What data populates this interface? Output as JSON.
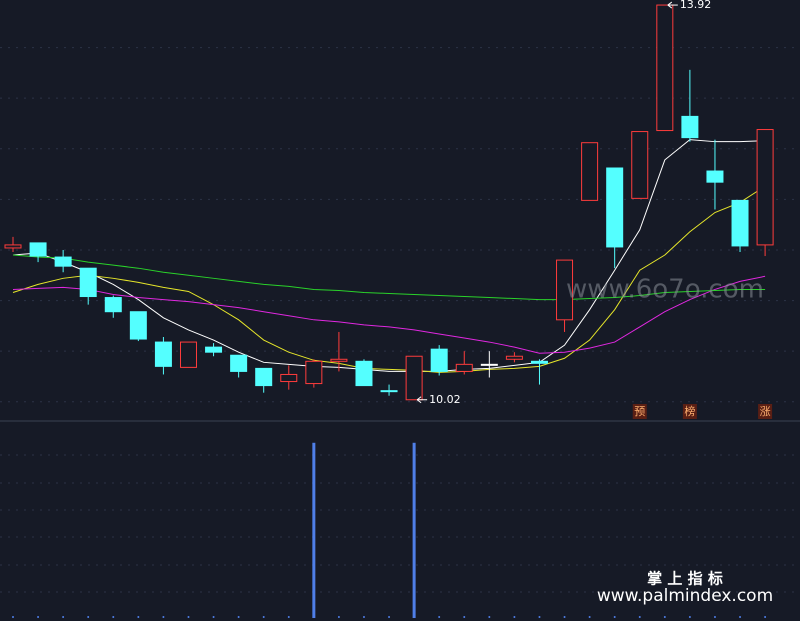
{
  "chart_data": {
    "type": "candlestick",
    "ylim": [
      9.82,
      13.97
    ],
    "yticks": [
      10.0,
      10.5,
      11.0,
      11.5,
      12.0,
      12.5,
      13.0,
      13.5
    ],
    "grid": true,
    "up_color": "#ff3c3c",
    "down_color": "#54ffff",
    "flat_color": "#ffffff",
    "open": [
      11.52,
      11.57,
      11.43,
      11.32,
      11.03,
      10.89,
      10.59,
      10.34,
      10.54,
      10.46,
      10.33,
      10.2,
      10.18,
      10.4,
      10.4,
      10.11,
      10.02,
      10.52,
      10.3,
      10.37,
      10.42,
      10.4,
      10.81,
      11.99,
      12.31,
      12.01,
      12.68,
      12.82,
      12.28,
      11.99,
      11.55
    ],
    "high": [
      11.63,
      11.57,
      11.5,
      11.32,
      11.05,
      10.89,
      10.64,
      10.59,
      10.58,
      10.46,
      10.33,
      10.36,
      10.42,
      10.69,
      10.42,
      10.17,
      10.45,
      10.56,
      10.5,
      10.5,
      10.49,
      10.42,
      11.4,
      12.56,
      12.31,
      12.67,
      13.92,
      13.28,
      12.59,
      11.99,
      12.69
    ],
    "low": [
      11.48,
      11.38,
      11.28,
      10.96,
      10.83,
      10.6,
      10.27,
      10.34,
      10.45,
      10.24,
      10.09,
      10.12,
      10.14,
      10.3,
      10.16,
      10.06,
      10.02,
      10.26,
      10.27,
      10.24,
      10.39,
      10.17,
      10.69,
      11.99,
      11.32,
      12.01,
      12.68,
      12.57,
      11.9,
      11.48,
      11.44
    ],
    "close": [
      11.55,
      11.44,
      11.34,
      11.04,
      10.89,
      10.62,
      10.35,
      10.59,
      10.49,
      10.3,
      10.16,
      10.27,
      10.4,
      10.42,
      10.16,
      10.1,
      10.45,
      10.3,
      10.37,
      10.37,
      10.45,
      10.38,
      11.4,
      12.56,
      11.53,
      12.67,
      13.92,
      12.61,
      12.17,
      11.54,
      12.69
    ],
    "lines": [
      {
        "color": "#ffffff",
        "values": [
          11.45,
          11.47,
          11.38,
          11.28,
          11.16,
          11.01,
          10.83,
          10.71,
          10.61,
          10.49,
          10.39,
          10.37,
          10.35,
          10.34,
          10.32,
          10.3,
          10.3,
          10.3,
          10.32,
          10.33,
          10.36,
          10.39,
          10.56,
          10.91,
          11.3,
          11.7,
          12.39,
          12.59,
          12.57,
          12.57,
          12.58
        ]
      },
      {
        "color": "#e6e62a",
        "values": [
          11.08,
          11.16,
          11.22,
          11.25,
          11.22,
          11.18,
          11.13,
          11.09,
          10.96,
          10.81,
          10.61,
          10.49,
          10.41,
          10.38,
          10.33,
          10.32,
          10.31,
          10.29,
          10.3,
          10.32,
          10.33,
          10.35,
          10.43,
          10.61,
          10.91,
          11.3,
          11.45,
          11.68,
          11.87,
          11.97,
          12.13
        ]
      },
      {
        "color": "#e028e0",
        "values": [
          11.11,
          11.12,
          11.13,
          11.11,
          11.06,
          11.03,
          11.01,
          10.99,
          10.96,
          10.93,
          10.89,
          10.85,
          10.81,
          10.79,
          10.76,
          10.74,
          10.71,
          10.67,
          10.63,
          10.59,
          10.54,
          10.48,
          10.49,
          10.53,
          10.59,
          10.74,
          10.89,
          11.01,
          11.11,
          11.19,
          11.24
        ]
      },
      {
        "color": "#2ad22a",
        "values": [
          11.45,
          11.43,
          11.42,
          11.38,
          11.35,
          11.32,
          11.28,
          11.25,
          11.22,
          11.19,
          11.16,
          11.14,
          11.11,
          11.1,
          11.08,
          11.07,
          11.06,
          11.05,
          11.04,
          11.03,
          11.02,
          11.01,
          11.01,
          11.02,
          11.03,
          11.05,
          11.08,
          11.09,
          11.1,
          11.11,
          11.11
        ]
      }
    ],
    "signal_labels": [
      null,
      null,
      null,
      null,
      null,
      null,
      null,
      null,
      null,
      null,
      null,
      null,
      null,
      null,
      null,
      null,
      null,
      null,
      null,
      null,
      null,
      null,
      null,
      null,
      null,
      "预",
      null,
      "榜",
      null,
      null,
      "涨"
    ],
    "indicator": {
      "color": "#4f7fe8",
      "ylim": [
        0,
        1.13
      ],
      "values": [
        0,
        0,
        0,
        0,
        0,
        0,
        0,
        0,
        0,
        0,
        0,
        0,
        1,
        0,
        0,
        0,
        1,
        0,
        0,
        0,
        0,
        0,
        0,
        0,
        0,
        0,
        0,
        0,
        0,
        0,
        0
      ]
    },
    "watermark": "www.6o7o.com",
    "brand": "掌 上 指 标",
    "brand_url": "www.palmindex.com"
  }
}
